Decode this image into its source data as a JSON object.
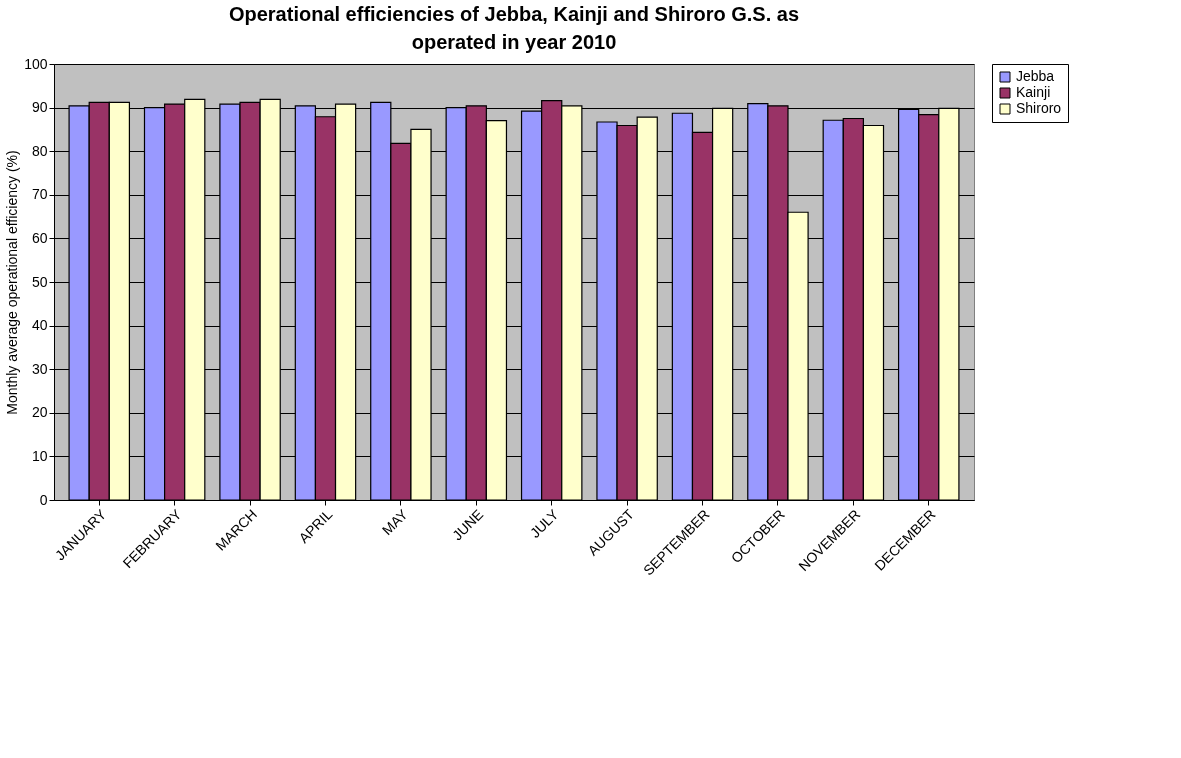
{
  "chart_data": {
    "type": "bar",
    "title": "Operational efficiencies of Jebba, Kainji and Shiroro G.S. as operated in year 2010",
    "ylabel": "Monthly average operational efficiency (%)",
    "categories": [
      "JANUARY",
      "FEBRUARY",
      "MARCH",
      "APRIL",
      "MAY",
      "JUNE",
      "JULY",
      "AUGUST",
      "SEPTEMBER",
      "OCTOBER",
      "NOVEMBER",
      "DECEMBER"
    ],
    "series": [
      {
        "name": "Jebba",
        "color": "#9999ff",
        "values": [
          90.4,
          90.0,
          90.8,
          90.4,
          91.2,
          90.0,
          89.2,
          86.7,
          88.7,
          90.9,
          87.1,
          89.6
        ]
      },
      {
        "name": "Kainji",
        "color": "#993366",
        "values": [
          91.2,
          90.8,
          91.2,
          87.9,
          81.8,
          90.4,
          91.6,
          85.9,
          84.3,
          90.4,
          87.5,
          88.4
        ]
      },
      {
        "name": "Shiroro",
        "color": "#ffffcc",
        "values": [
          91.2,
          91.9,
          91.9,
          90.8,
          85.0,
          87.0,
          90.4,
          87.8,
          89.8,
          66.0,
          85.9,
          89.8
        ]
      }
    ],
    "ylim": [
      0,
      100
    ],
    "yticks": [
      0,
      10,
      20,
      30,
      40,
      50,
      60,
      70,
      80,
      90,
      100
    ],
    "grid": "y",
    "legend": "right"
  }
}
